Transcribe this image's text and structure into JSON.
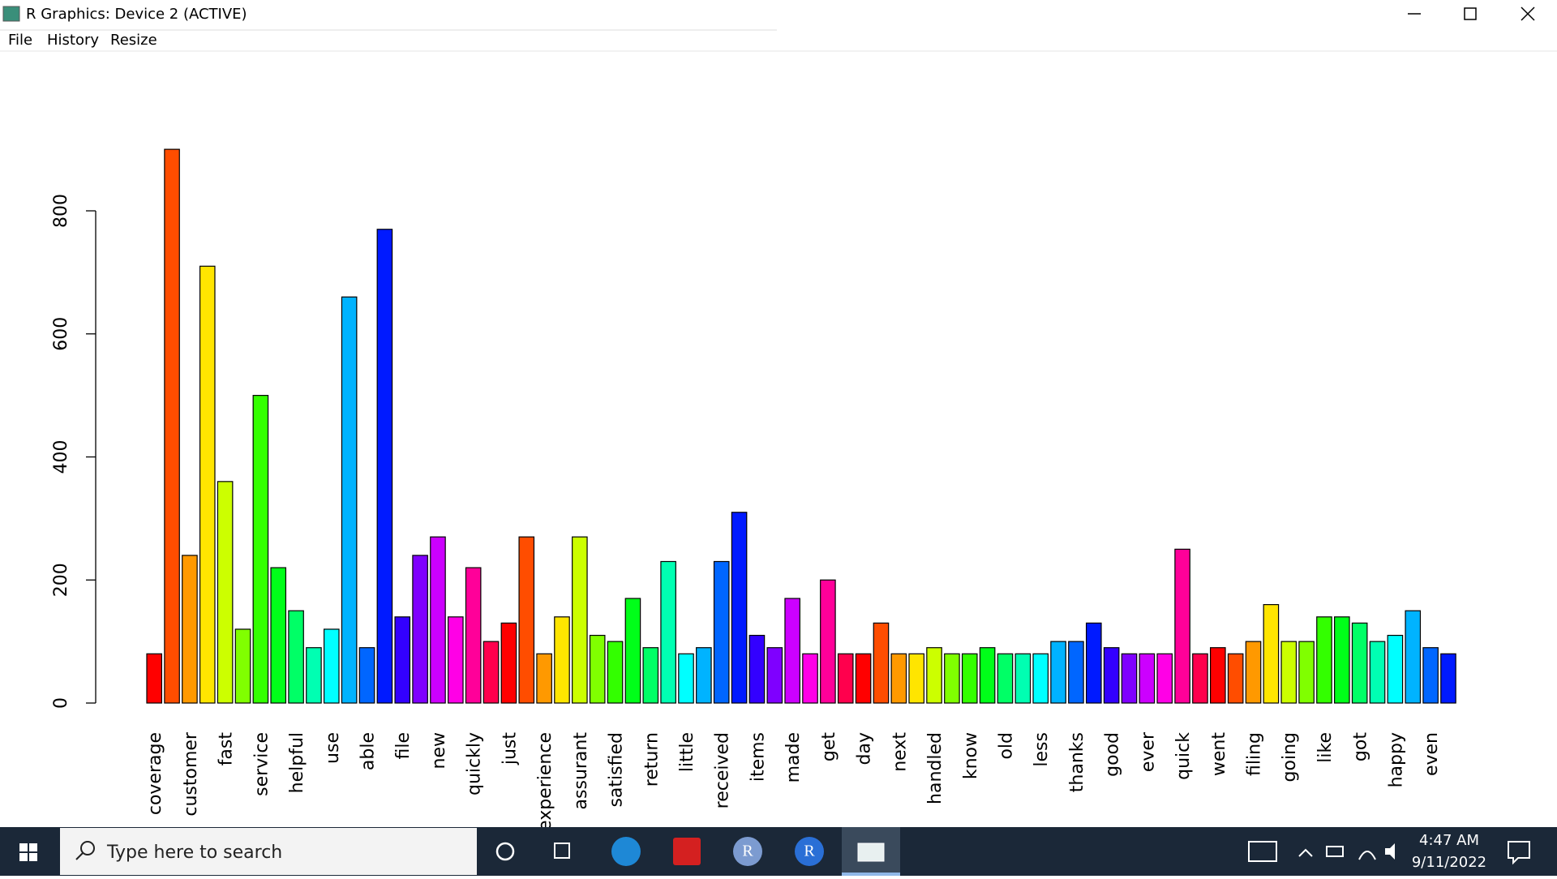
{
  "window": {
    "title": "R Graphics: Device 2 (ACTIVE)",
    "menu": [
      "File",
      "History",
      "Resize"
    ]
  },
  "chart_data": {
    "type": "bar",
    "categories": [
      "coverage",
      null,
      "customer",
      null,
      "fast",
      null,
      "service",
      null,
      "helpful",
      null,
      "use",
      null,
      "able",
      null,
      "file",
      null,
      "new",
      null,
      "quickly",
      null,
      "just",
      null,
      "experience",
      null,
      "assurant",
      null,
      "satisfied",
      null,
      "return",
      null,
      "little",
      null,
      "received",
      null,
      "items",
      null,
      "made",
      null,
      "get",
      null,
      "day",
      null,
      "next",
      null,
      "handled",
      null,
      "know",
      null,
      "old",
      null,
      "less",
      null,
      "thanks",
      null,
      "good",
      null,
      "ever",
      null,
      "quick",
      null,
      "went",
      null,
      "filing",
      null,
      "going",
      null,
      "like",
      null,
      "got",
      null,
      "happy",
      null,
      "even",
      null
    ],
    "values": [
      80,
      900,
      240,
      710,
      360,
      120,
      500,
      220,
      150,
      90,
      120,
      660,
      90,
      770,
      140,
      240,
      270,
      140,
      220,
      100,
      130,
      270,
      80,
      140,
      270,
      110,
      100,
      170,
      90,
      230,
      80,
      90,
      230,
      310,
      110,
      90,
      170,
      80,
      200,
      80,
      80,
      130,
      80,
      80,
      90,
      80,
      80,
      90,
      80,
      80,
      80,
      100,
      100,
      130,
      90,
      80,
      80,
      80,
      250,
      80,
      90,
      80,
      100,
      160,
      100,
      100,
      140,
      140,
      130,
      100,
      110,
      150,
      90,
      80
    ],
    "colors": [
      "#FF0000",
      "#FF4D00",
      "#FF9900",
      "#FFE500",
      "#CCFF00",
      "#80FF00",
      "#33FF00",
      "#00FF19",
      "#00FF66",
      "#00FFB2",
      "#00FFFF",
      "#00B3FF",
      "#0066FF",
      "#001AFF",
      "#3300FF",
      "#7F00FF",
      "#CC00FF",
      "#FF00E6",
      "#FF0099",
      "#FF004D"
    ],
    "ylim": [
      0,
      800
    ],
    "yticks": [
      0,
      200,
      400,
      600,
      800
    ]
  },
  "taskbar": {
    "search_placeholder": "Type here to search",
    "apps": [
      "R",
      "R"
    ],
    "time": "4:47 AM",
    "date": "9/11/2022"
  }
}
